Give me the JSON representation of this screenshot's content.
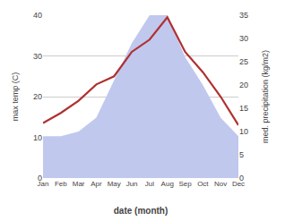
{
  "chart_data": {
    "type": "line",
    "categories": [
      "Jan",
      "Feb",
      "Mar",
      "Apr",
      "May",
      "Jun",
      "Jul",
      "Aug",
      "Sep",
      "Oct",
      "Nov",
      "Dec"
    ],
    "series": [
      {
        "type": "area",
        "color": "#c0c8ee",
        "axis": "y2",
        "values": [
          9.0,
          9.0,
          10.0,
          13.0,
          21.0,
          29.0,
          35.0,
          35.0,
          26.0,
          20.0,
          13.0,
          9.0
        ]
      },
      {
        "type": "line",
        "color": "#b03030",
        "values": [
          13.5,
          16.0,
          19.0,
          23.0,
          25.0,
          31.0,
          34.0,
          39.5,
          31.0,
          26.0,
          20.0,
          13.0
        ]
      }
    ],
    "xlabel": "date (month)",
    "ylabel": "max temp (C)",
    "y2label": "med. precipitation (kg/m2)",
    "ylim": [
      0,
      40
    ],
    "yticks": [
      0,
      10,
      20,
      30,
      40
    ],
    "y2lim": [
      0,
      35
    ],
    "y2ticks": [
      0,
      5,
      10,
      15,
      20,
      25,
      30,
      35
    ],
    "grid": true
  }
}
